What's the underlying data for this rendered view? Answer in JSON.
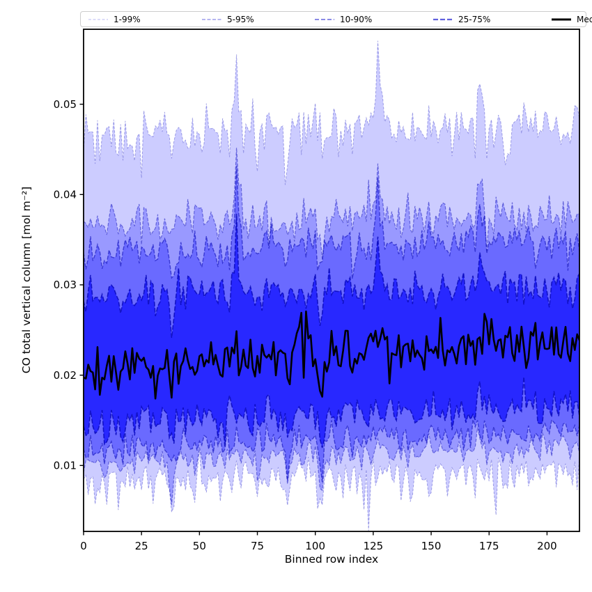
{
  "figure": {
    "background": "#ffffff"
  },
  "legend": {
    "items": [
      {
        "label": "1-99%",
        "line_color": "#0000cc",
        "line_alpha": 0.22,
        "width": 1.2,
        "dash": "4 2.5"
      },
      {
        "label": "5-95%",
        "line_color": "#0000cc",
        "line_alpha": 0.38,
        "width": 1.4,
        "dash": "5 2.5"
      },
      {
        "label": "10-90%",
        "line_color": "#0000cc",
        "line_alpha": 0.52,
        "width": 1.8,
        "dash": "6 3"
      },
      {
        "label": "25-75%",
        "line_color": "#0000cc",
        "line_alpha": 0.62,
        "width": 2.2,
        "dash": "7 3"
      },
      {
        "label": "Median",
        "line_color": "#000000",
        "line_alpha": 1.0,
        "width": 3.0,
        "dash": ""
      }
    ]
  },
  "chart_data": {
    "type": "area",
    "subtype": "percentile-fan-chart",
    "title": "",
    "xlabel": "Binned row index",
    "ylabel": "CO total vertical column [mol m⁻²]",
    "xlim": [
      0,
      214
    ],
    "ylim": [
      0.0027,
      0.0583
    ],
    "xticks": [
      0,
      25,
      50,
      75,
      100,
      125,
      150,
      175,
      200
    ],
    "yticks": [
      0.01,
      0.02,
      0.03,
      0.04,
      0.05
    ],
    "ytick_decimals": 2,
    "grid": false,
    "legend_position": "top",
    "n_points": 215,
    "seed": 20,
    "axis_color": "#000000",
    "fill_color": "#0000ff",
    "line_color": "#0000b0",
    "median_color": "#000000",
    "bands": [
      {
        "label": "1-99%",
        "lower": "p1",
        "upper": "p99",
        "fill_alpha": 0.2,
        "line_alpha": 0.32,
        "line_width": 1.0,
        "dash": "3.5 2.2"
      },
      {
        "label": "5-95%",
        "lower": "p5",
        "upper": "p95",
        "fill_alpha": 0.25,
        "line_alpha": 0.45,
        "line_width": 1.2,
        "dash": "4.5 2.3"
      },
      {
        "label": "10-90%",
        "lower": "p10",
        "upper": "p90",
        "fill_alpha": 0.3,
        "line_alpha": 0.55,
        "line_width": 1.4,
        "dash": "5.5 2.4"
      },
      {
        "label": "25-75%",
        "lower": "p25",
        "upper": "p75",
        "fill_alpha": 0.62,
        "line_alpha": 0.72,
        "line_width": 1.6,
        "dash": "6.5 2.6"
      }
    ],
    "median": {
      "label": "Median",
      "line_width": 2.6
    },
    "series_params": [
      {
        "key": "p1",
        "group": "lower",
        "base": 0.0083,
        "trend": 0.0016,
        "amp": 0.0024,
        "shared": 0.0008,
        "spike_prob": 0.08,
        "spike_mul": 2.0,
        "skew": -0.35,
        "seed": 11
      },
      {
        "key": "p5",
        "group": "lower",
        "base": 0.0104,
        "trend": 0.0018,
        "amp": 0.0018,
        "shared": 0.0008,
        "spike_prob": 0.06,
        "spike_mul": 1.8,
        "skew": -0.15,
        "seed": 12
      },
      {
        "key": "p10",
        "group": "lower",
        "base": 0.0119,
        "trend": 0.002,
        "amp": 0.002,
        "shared": 0.0008,
        "spike_prob": 0.06,
        "spike_mul": 1.8,
        "skew": -0.1,
        "seed": 13
      },
      {
        "key": "p25",
        "group": "lower",
        "base": 0.0146,
        "trend": 0.0023,
        "amp": 0.0024,
        "shared": 0.0008,
        "spike_prob": 0.07,
        "spike_mul": 1.9,
        "skew": -0.1,
        "seed": 14
      },
      {
        "key": "median",
        "group": "mid",
        "base": 0.0207,
        "trend": 0.0033,
        "amp": 0.003,
        "shared": 0.0008,
        "spike_prob": 0.04,
        "spike_mul": 1.8,
        "skew": 0.0,
        "seed": 15
      },
      {
        "key": "p75",
        "group": "upper",
        "base": 0.0287,
        "trend": 0.0012,
        "amp": 0.0024,
        "shared": 0.0009,
        "spike_prob": 0.1,
        "spike_mul": 2.2,
        "skew": -0.1,
        "seed": 16
      },
      {
        "key": "p90",
        "group": "upper",
        "base": 0.0338,
        "trend": 0.001,
        "amp": 0.0024,
        "shared": 0.0009,
        "spike_prob": 0.1,
        "spike_mul": 2.2,
        "skew": -0.1,
        "seed": 17
      },
      {
        "key": "p95",
        "group": "upper",
        "base": 0.0369,
        "trend": 0.0009,
        "amp": 0.0026,
        "shared": 0.001,
        "spike_prob": 0.1,
        "spike_mul": 2.2,
        "skew": -0.05,
        "seed": 18
      },
      {
        "key": "p99",
        "group": "upper",
        "base": 0.0466,
        "trend": 0.0009,
        "amp": 0.0032,
        "shared": 0.001,
        "spike_prob": 0.1,
        "spike_mul": 2.2,
        "skew": 0.0,
        "seed": 19
      }
    ],
    "events": [
      {
        "i": 38,
        "upper": -0.0022,
        "mid": -0.003,
        "lower": -0.0038
      },
      {
        "i": 66,
        "upper": 0.0085,
        "mid": 0.0018,
        "lower": 0.0008
      },
      {
        "i": 88,
        "upper": -0.0012,
        "mid": -0.0018,
        "lower": -0.0034
      },
      {
        "i": 103,
        "upper": -0.004,
        "mid": -0.0044,
        "lower": -0.004
      },
      {
        "i": 127,
        "upper": 0.006,
        "mid": 0.0012,
        "lower": 0.0006
      },
      {
        "i": 171,
        "upper": 0.0048,
        "mid": 0.0014,
        "lower": 0.0008
      }
    ],
    "min_gap": 0.0003
  }
}
